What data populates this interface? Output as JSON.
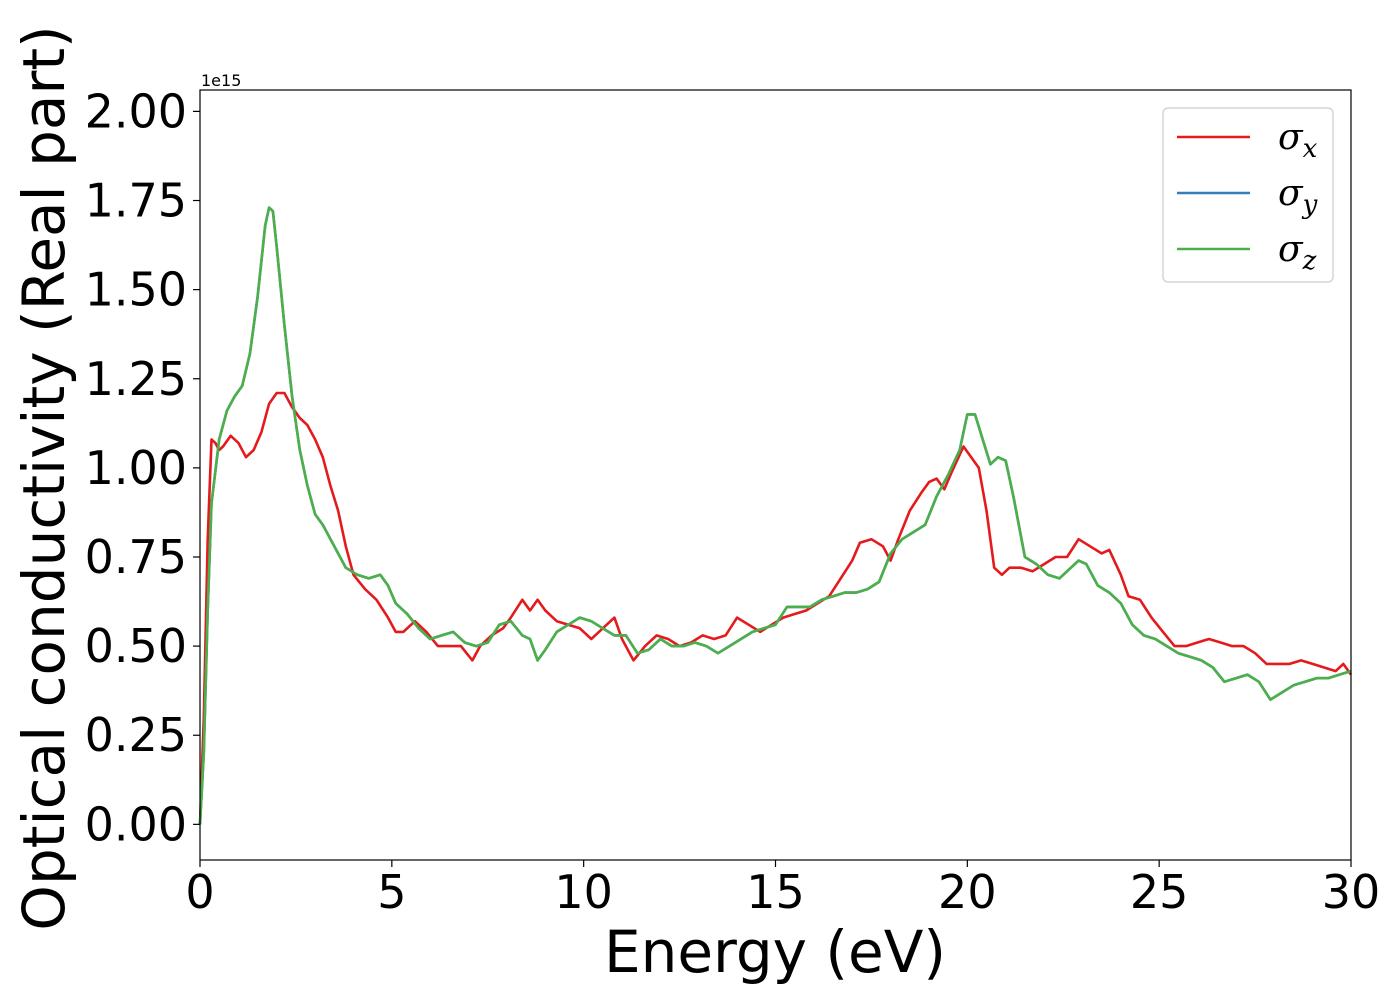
{
  "chart_data": {
    "type": "line",
    "title": "",
    "xlabel": "Energy (eV)",
    "ylabel": "Optical conductivity (Real part)",
    "y_offset_label": "1e15",
    "xlim": [
      0,
      30
    ],
    "ylim": [
      -0.1,
      2.06
    ],
    "xticks": [
      0,
      5,
      10,
      15,
      20,
      25,
      30
    ],
    "xtick_labels": [
      "0",
      "5",
      "10",
      "15",
      "20",
      "25",
      "30"
    ],
    "yticks": [
      0,
      0.25,
      0.5,
      0.75,
      1.0,
      1.25,
      1.5,
      1.75,
      2.0
    ],
    "ytick_labels": [
      "0.00",
      "0.25",
      "0.50",
      "0.75",
      "1.00",
      "1.25",
      "1.50",
      "1.75",
      "2.00"
    ],
    "grid": false,
    "legend_position": "top-right",
    "series": [
      {
        "name": "σx",
        "label_base": "σ",
        "label_sub": "x",
        "color": "#e41a1c",
        "x": [
          0,
          0.1,
          0.2,
          0.3,
          0.4,
          0.5,
          0.6,
          0.8,
          1.0,
          1.2,
          1.4,
          1.6,
          1.8,
          2.0,
          2.2,
          2.4,
          2.6,
          2.8,
          3.0,
          3.2,
          3.4,
          3.6,
          3.8,
          4.0,
          4.3,
          4.6,
          4.9,
          5.1,
          5.3,
          5.6,
          5.9,
          6.2,
          6.5,
          6.8,
          7.1,
          7.3,
          7.6,
          7.9,
          8.1,
          8.4,
          8.6,
          8.8,
          9.0,
          9.3,
          9.6,
          9.9,
          10.2,
          10.5,
          10.8,
          11.0,
          11.3,
          11.6,
          11.9,
          12.2,
          12.5,
          12.8,
          13.1,
          13.4,
          13.7,
          14.0,
          14.3,
          14.6,
          14.9,
          15.2,
          15.5,
          15.8,
          16.1,
          16.4,
          16.7,
          17.0,
          17.2,
          17.5,
          17.8,
          18.0,
          18.2,
          18.5,
          18.8,
          19.0,
          19.2,
          19.4,
          19.6,
          19.9,
          20.1,
          20.3,
          20.5,
          20.7,
          20.9,
          21.1,
          21.4,
          21.7,
          22.0,
          22.3,
          22.6,
          22.9,
          23.2,
          23.5,
          23.7,
          24.0,
          24.2,
          24.5,
          24.8,
          25.1,
          25.4,
          25.7,
          26.0,
          26.3,
          26.6,
          26.9,
          27.2,
          27.5,
          27.8,
          28.1,
          28.4,
          28.7,
          29.0,
          29.3,
          29.6,
          29.8,
          30.0
        ],
        "y": [
          0,
          0.3,
          0.8,
          1.08,
          1.07,
          1.05,
          1.06,
          1.09,
          1.07,
          1.03,
          1.05,
          1.1,
          1.18,
          1.21,
          1.21,
          1.17,
          1.14,
          1.12,
          1.08,
          1.03,
          0.95,
          0.88,
          0.78,
          0.7,
          0.66,
          0.63,
          0.58,
          0.54,
          0.54,
          0.57,
          0.54,
          0.5,
          0.5,
          0.5,
          0.46,
          0.5,
          0.53,
          0.55,
          0.58,
          0.63,
          0.6,
          0.63,
          0.6,
          0.57,
          0.56,
          0.55,
          0.52,
          0.55,
          0.58,
          0.52,
          0.46,
          0.5,
          0.53,
          0.52,
          0.5,
          0.51,
          0.53,
          0.52,
          0.53,
          0.58,
          0.56,
          0.54,
          0.56,
          0.58,
          0.59,
          0.6,
          0.62,
          0.64,
          0.69,
          0.74,
          0.79,
          0.8,
          0.78,
          0.74,
          0.8,
          0.88,
          0.93,
          0.96,
          0.97,
          0.94,
          0.99,
          1.06,
          1.03,
          1.0,
          0.88,
          0.72,
          0.7,
          0.72,
          0.72,
          0.71,
          0.73,
          0.75,
          0.75,
          0.8,
          0.78,
          0.76,
          0.77,
          0.7,
          0.64,
          0.63,
          0.58,
          0.54,
          0.5,
          0.5,
          0.51,
          0.52,
          0.51,
          0.5,
          0.5,
          0.48,
          0.45,
          0.45,
          0.45,
          0.46,
          0.45,
          0.44,
          0.43,
          0.45,
          0.42
        ]
      },
      {
        "name": "σy",
        "label_base": "σ",
        "label_sub": "y",
        "color": "#377eb8",
        "x": [
          0,
          0.1,
          0.2,
          0.3,
          0.5,
          0.7,
          0.9,
          1.1,
          1.3,
          1.5,
          1.7,
          1.8,
          1.9,
          2.0,
          2.2,
          2.4,
          2.6,
          2.8,
          3.0,
          3.2,
          3.5,
          3.8,
          4.1,
          4.4,
          4.7,
          4.9,
          5.1,
          5.4,
          5.7,
          6.0,
          6.3,
          6.6,
          6.9,
          7.2,
          7.5,
          7.8,
          8.1,
          8.4,
          8.6,
          8.8,
          9.0,
          9.3,
          9.6,
          9.9,
          10.2,
          10.5,
          10.8,
          11.1,
          11.4,
          11.7,
          12.0,
          12.3,
          12.6,
          12.9,
          13.2,
          13.5,
          13.8,
          14.1,
          14.4,
          14.7,
          15.0,
          15.3,
          15.6,
          15.9,
          16.2,
          16.5,
          16.8,
          17.1,
          17.4,
          17.7,
          18.0,
          18.3,
          18.6,
          18.9,
          19.2,
          19.5,
          19.8,
          20.0,
          20.2,
          20.4,
          20.6,
          20.8,
          21.0,
          21.2,
          21.5,
          21.8,
          22.1,
          22.4,
          22.7,
          22.9,
          23.1,
          23.4,
          23.7,
          24.0,
          24.3,
          24.6,
          24.9,
          25.2,
          25.5,
          25.8,
          26.1,
          26.4,
          26.7,
          27.0,
          27.3,
          27.6,
          27.9,
          28.2,
          28.5,
          28.8,
          29.1,
          29.4,
          29.7,
          30.0
        ],
        "y": [
          0,
          0.2,
          0.6,
          0.9,
          1.08,
          1.16,
          1.2,
          1.23,
          1.32,
          1.48,
          1.68,
          1.73,
          1.72,
          1.62,
          1.4,
          1.2,
          1.05,
          0.95,
          0.87,
          0.84,
          0.78,
          0.72,
          0.7,
          0.69,
          0.7,
          0.67,
          0.62,
          0.59,
          0.55,
          0.52,
          0.53,
          0.54,
          0.51,
          0.5,
          0.51,
          0.56,
          0.57,
          0.53,
          0.52,
          0.46,
          0.49,
          0.54,
          0.56,
          0.58,
          0.57,
          0.55,
          0.53,
          0.53,
          0.48,
          0.49,
          0.52,
          0.5,
          0.5,
          0.51,
          0.5,
          0.48,
          0.5,
          0.52,
          0.54,
          0.55,
          0.56,
          0.61,
          0.61,
          0.61,
          0.63,
          0.64,
          0.65,
          0.65,
          0.66,
          0.68,
          0.76,
          0.8,
          0.82,
          0.84,
          0.92,
          0.98,
          1.05,
          1.15,
          1.15,
          1.08,
          1.01,
          1.03,
          1.02,
          0.92,
          0.75,
          0.73,
          0.7,
          0.69,
          0.72,
          0.74,
          0.73,
          0.67,
          0.65,
          0.62,
          0.56,
          0.53,
          0.52,
          0.5,
          0.48,
          0.47,
          0.46,
          0.44,
          0.4,
          0.41,
          0.42,
          0.4,
          0.35,
          0.37,
          0.39,
          0.4,
          0.41,
          0.41,
          0.42,
          0.43
        ]
      },
      {
        "name": "σz",
        "label_base": "σ",
        "label_sub": "z",
        "color": "#4daf4a",
        "x": [
          0,
          0.1,
          0.2,
          0.3,
          0.5,
          0.7,
          0.9,
          1.1,
          1.3,
          1.5,
          1.7,
          1.8,
          1.9,
          2.0,
          2.2,
          2.4,
          2.6,
          2.8,
          3.0,
          3.2,
          3.5,
          3.8,
          4.1,
          4.4,
          4.7,
          4.9,
          5.1,
          5.4,
          5.7,
          6.0,
          6.3,
          6.6,
          6.9,
          7.2,
          7.5,
          7.8,
          8.1,
          8.4,
          8.6,
          8.8,
          9.0,
          9.3,
          9.6,
          9.9,
          10.2,
          10.5,
          10.8,
          11.1,
          11.4,
          11.7,
          12.0,
          12.3,
          12.6,
          12.9,
          13.2,
          13.5,
          13.8,
          14.1,
          14.4,
          14.7,
          15.0,
          15.3,
          15.6,
          15.9,
          16.2,
          16.5,
          16.8,
          17.1,
          17.4,
          17.7,
          18.0,
          18.3,
          18.6,
          18.9,
          19.2,
          19.5,
          19.8,
          20.0,
          20.2,
          20.4,
          20.6,
          20.8,
          21.0,
          21.2,
          21.5,
          21.8,
          22.1,
          22.4,
          22.7,
          22.9,
          23.1,
          23.4,
          23.7,
          24.0,
          24.3,
          24.6,
          24.9,
          25.2,
          25.5,
          25.8,
          26.1,
          26.4,
          26.7,
          27.0,
          27.3,
          27.6,
          27.9,
          28.2,
          28.5,
          28.8,
          29.1,
          29.4,
          29.7,
          30.0
        ],
        "y": [
          0,
          0.2,
          0.6,
          0.9,
          1.08,
          1.16,
          1.2,
          1.23,
          1.32,
          1.48,
          1.68,
          1.73,
          1.72,
          1.62,
          1.4,
          1.2,
          1.05,
          0.95,
          0.87,
          0.84,
          0.78,
          0.72,
          0.7,
          0.69,
          0.7,
          0.67,
          0.62,
          0.59,
          0.55,
          0.52,
          0.53,
          0.54,
          0.51,
          0.5,
          0.51,
          0.56,
          0.57,
          0.53,
          0.52,
          0.46,
          0.49,
          0.54,
          0.56,
          0.58,
          0.57,
          0.55,
          0.53,
          0.53,
          0.48,
          0.49,
          0.52,
          0.5,
          0.5,
          0.51,
          0.5,
          0.48,
          0.5,
          0.52,
          0.54,
          0.55,
          0.56,
          0.61,
          0.61,
          0.61,
          0.63,
          0.64,
          0.65,
          0.65,
          0.66,
          0.68,
          0.76,
          0.8,
          0.82,
          0.84,
          0.92,
          0.98,
          1.05,
          1.15,
          1.15,
          1.08,
          1.01,
          1.03,
          1.02,
          0.92,
          0.75,
          0.73,
          0.7,
          0.69,
          0.72,
          0.74,
          0.73,
          0.67,
          0.65,
          0.62,
          0.56,
          0.53,
          0.52,
          0.5,
          0.48,
          0.47,
          0.46,
          0.44,
          0.4,
          0.41,
          0.42,
          0.4,
          0.35,
          0.37,
          0.39,
          0.4,
          0.41,
          0.41,
          0.42,
          0.43
        ]
      }
    ]
  }
}
